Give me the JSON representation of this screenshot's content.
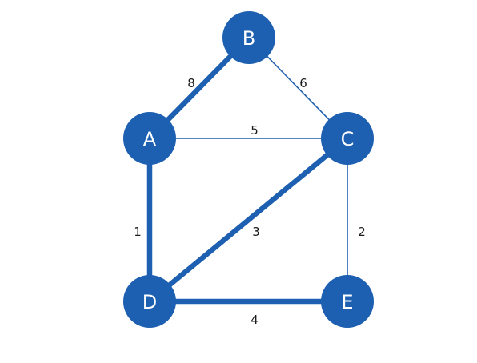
{
  "colors": {
    "node_fill": "#1d5fb0",
    "edge": "#1d5fb0",
    "node_text": "#ffffff",
    "weight_text": "#1a1a1a",
    "background": "#ffffff"
  },
  "graph": {
    "nodes": [
      {
        "id": "A",
        "label": "A"
      },
      {
        "id": "B",
        "label": "B"
      },
      {
        "id": "C",
        "label": "C"
      },
      {
        "id": "D",
        "label": "D"
      },
      {
        "id": "E",
        "label": "E"
      }
    ],
    "edges": [
      {
        "from": "A",
        "to": "B",
        "weight": "8",
        "highlighted": true
      },
      {
        "from": "B",
        "to": "C",
        "weight": "6",
        "highlighted": false
      },
      {
        "from": "A",
        "to": "C",
        "weight": "5",
        "highlighted": false
      },
      {
        "from": "A",
        "to": "D",
        "weight": "1",
        "highlighted": true
      },
      {
        "from": "C",
        "to": "D",
        "weight": "3",
        "highlighted": true
      },
      {
        "from": "C",
        "to": "E",
        "weight": "2",
        "highlighted": false
      },
      {
        "from": "D",
        "to": "E",
        "weight": "4",
        "highlighted": true
      }
    ]
  }
}
